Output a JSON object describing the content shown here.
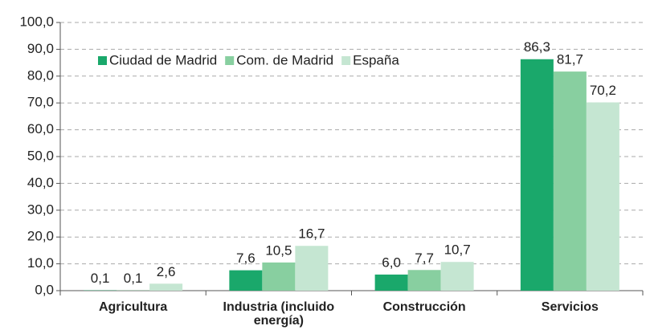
{
  "chart_data": {
    "type": "bar",
    "categories": [
      "Agricultura",
      "Industria (incluido energía)",
      "Construcción",
      "Servicios"
    ],
    "series": [
      {
        "name": "Ciudad de Madrid",
        "color": "#1aa86b",
        "values": [
          0.1,
          7.6,
          6.0,
          86.3
        ],
        "value_labels": [
          "0,1",
          "7,6",
          "6,0",
          "86,3"
        ]
      },
      {
        "name": "Com. de Madrid",
        "color": "#88cfa0",
        "values": [
          0.1,
          10.5,
          7.7,
          81.7
        ],
        "value_labels": [
          "0,1",
          "10,5",
          "7,7",
          "81,7"
        ]
      },
      {
        "name": "España",
        "color": "#c5e6d2",
        "values": [
          2.6,
          16.7,
          10.7,
          70.2
        ],
        "value_labels": [
          "2,6",
          "16,7",
          "10,7",
          "70,2"
        ]
      }
    ],
    "ylim": [
      0,
      100
    ],
    "yticks": [
      {
        "value": 0,
        "label": "0,0"
      },
      {
        "value": 10,
        "label": "10,0"
      },
      {
        "value": 20,
        "label": "20,0"
      },
      {
        "value": 30,
        "label": "30,0"
      },
      {
        "value": 40,
        "label": "40,0"
      },
      {
        "value": 50,
        "label": "50,0"
      },
      {
        "value": 60,
        "label": "60,0"
      },
      {
        "value": 70,
        "label": "70,0"
      },
      {
        "value": 80,
        "label": "80,0"
      },
      {
        "value": 90,
        "label": "90,0"
      },
      {
        "value": 100,
        "label": "100,0"
      }
    ],
    "grid": true,
    "legend": "top-left"
  }
}
